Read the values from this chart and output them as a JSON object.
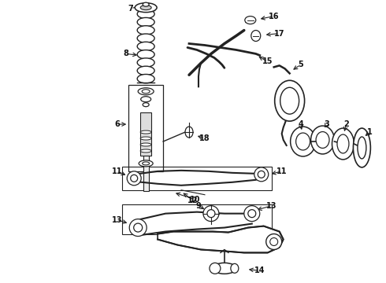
{
  "background_color": "#ffffff",
  "line_color": "#222222",
  "text_color": "#111111",
  "figsize": [
    4.9,
    3.6
  ],
  "dpi": 100,
  "font_size": 7.0
}
